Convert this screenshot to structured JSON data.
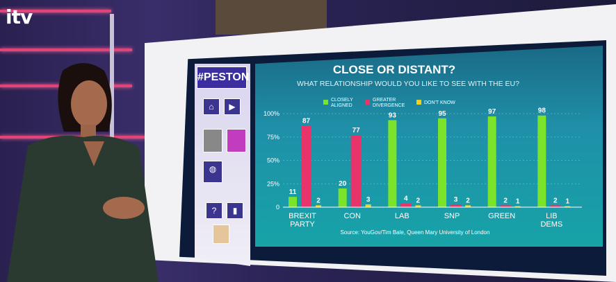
{
  "broadcaster": {
    "logo": "itv"
  },
  "show": {
    "hashtag": "#PESTON"
  },
  "chart_data": {
    "type": "bar",
    "title": "CLOSE OR DISTANT?",
    "subtitle": "WHAT RELATIONSHIP WOULD YOU LIKE TO SEE WITH THE EU?",
    "categories": [
      "BREXIT PARTY",
      "CON",
      "LAB",
      "SNP",
      "GREEN",
      "LIB DEMS"
    ],
    "category_lines": [
      [
        "BREXIT",
        "PARTY"
      ],
      [
        "CON"
      ],
      [
        "LAB"
      ],
      [
        "SNP"
      ],
      [
        "GREEN"
      ],
      [
        "LIB",
        "DEMS"
      ]
    ],
    "series": [
      {
        "name": "CLOSELY ALIGNED",
        "color": "#7be32a",
        "values": [
          11,
          20,
          93,
          95,
          97,
          98
        ]
      },
      {
        "name": "GREATER DIVERGENCE",
        "color": "#e8336b",
        "values": [
          87,
          77,
          4,
          3,
          2,
          2
        ]
      },
      {
        "name": "DON'T KNOW",
        "color": "#f0d21c",
        "values": [
          2,
          3,
          2,
          2,
          1,
          1
        ]
      }
    ],
    "yticks": [
      "0",
      "25%",
      "50%",
      "75%",
      "100%"
    ],
    "ylim": [
      0,
      100
    ],
    "source": "Source: YouGov/Tim Bale, Queen Mary University of London"
  }
}
